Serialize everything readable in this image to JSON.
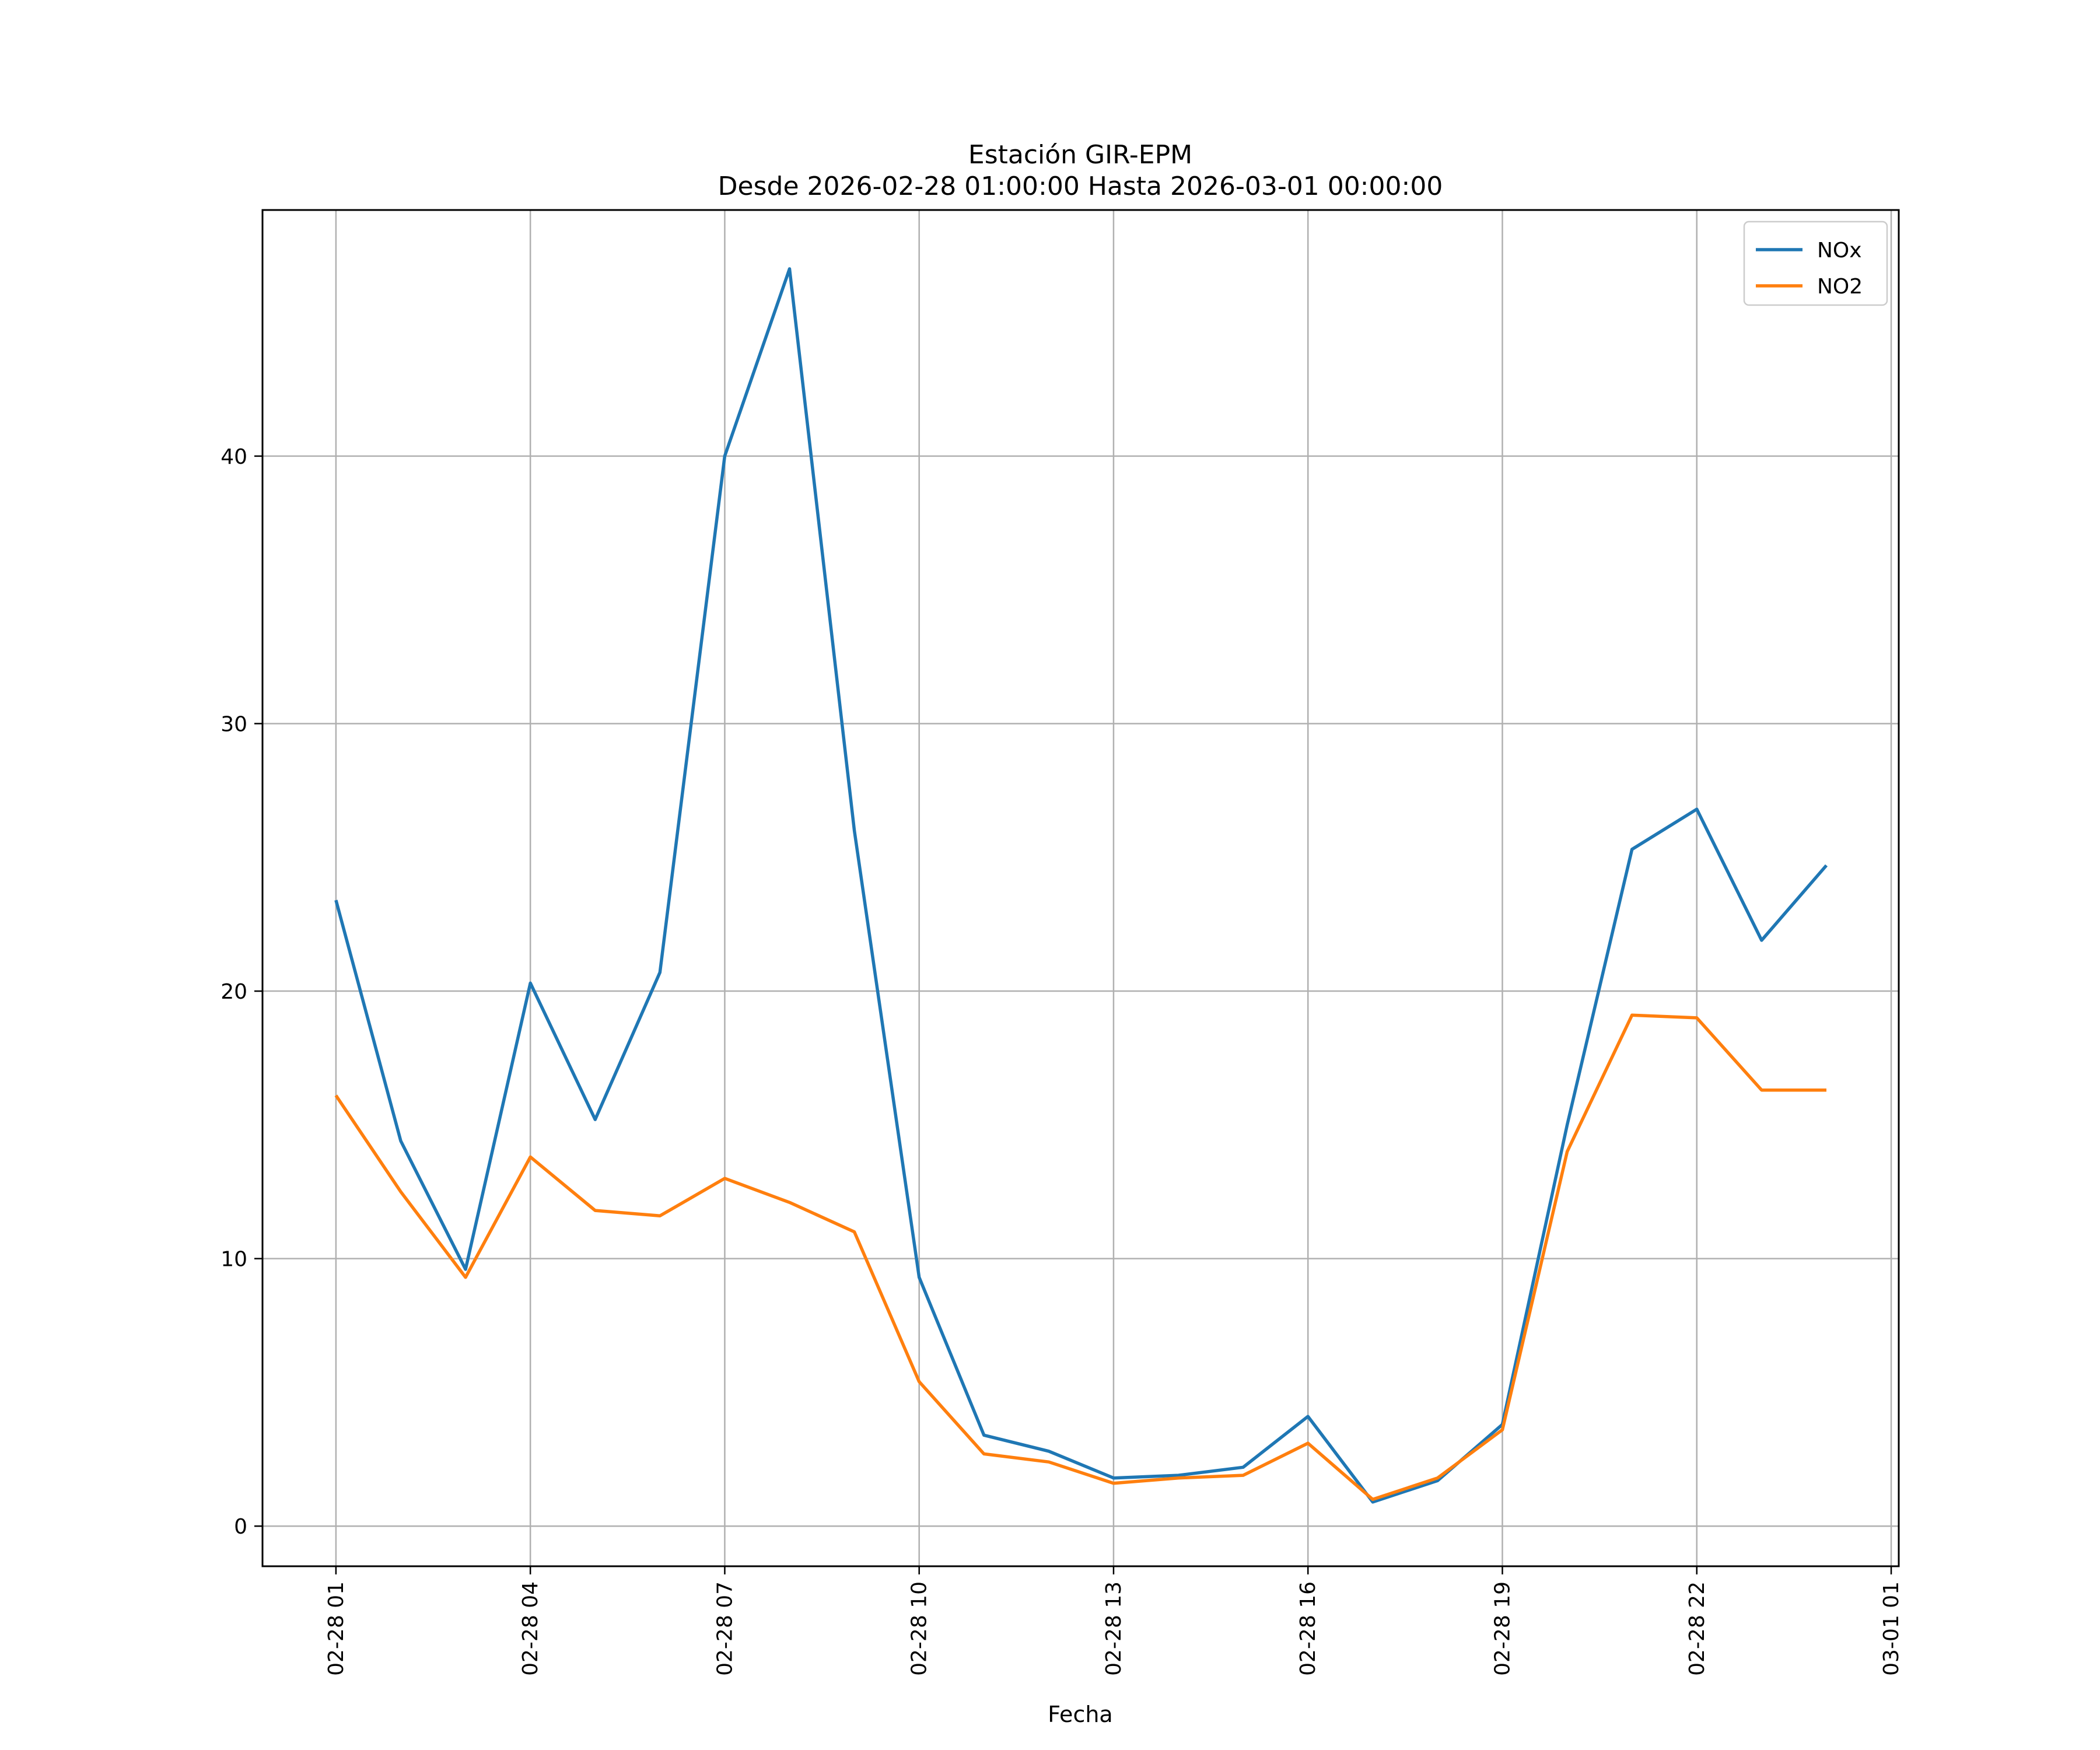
{
  "chart_data": {
    "type": "line",
    "title": "Estación GIR-EPM",
    "subtitle": "Desde 2026-02-28 01:00:00 Hasta 2026-03-01 00:00:00",
    "xlabel": "Fecha",
    "ylabel": "",
    "x": [
      "2026-02-28 01:00",
      "2026-02-28 02:00",
      "2026-02-28 03:00",
      "2026-02-28 04:00",
      "2026-02-28 05:00",
      "2026-02-28 06:00",
      "2026-02-28 07:00",
      "2026-02-28 08:00",
      "2026-02-28 09:00",
      "2026-02-28 10:00",
      "2026-02-28 11:00",
      "2026-02-28 12:00",
      "2026-02-28 13:00",
      "2026-02-28 14:00",
      "2026-02-28 15:00",
      "2026-02-28 16:00",
      "2026-02-28 17:00",
      "2026-02-28 18:00",
      "2026-02-28 19:00",
      "2026-02-28 20:00",
      "2026-02-28 21:00",
      "2026-02-28 22:00",
      "2026-02-28 23:00",
      "2026-03-01 00:00"
    ],
    "xticks": [
      "02-28 01",
      "02-28 04",
      "02-28 07",
      "02-28 10",
      "02-28 13",
      "02-28 16",
      "02-28 19",
      "02-28 22",
      "03-01 01"
    ],
    "yticks": [
      0,
      10,
      20,
      30,
      40
    ],
    "xlim": [
      "2026-02-27 23:52",
      "2026-03-01 01:07"
    ],
    "ylim": [
      -1.5,
      49.2
    ],
    "grid": true,
    "legend_position": "top-right",
    "series": [
      {
        "name": "NOx",
        "color": "#1f77b4",
        "values": [
          23.4,
          14.4,
          9.6,
          20.3,
          15.2,
          20.7,
          40.0,
          47.0,
          26.0,
          9.3,
          3.4,
          2.8,
          1.8,
          1.9,
          2.2,
          4.1,
          0.9,
          1.7,
          3.8,
          15.0,
          25.3,
          26.8,
          21.9,
          24.7
        ]
      },
      {
        "name": "NO2",
        "color": "#ff7f0e",
        "values": [
          16.1,
          12.5,
          9.3,
          13.8,
          11.8,
          11.6,
          13.0,
          12.1,
          11.0,
          5.4,
          2.7,
          2.4,
          1.6,
          1.8,
          1.9,
          3.1,
          1.0,
          1.8,
          3.6,
          14.0,
          19.1,
          19.0,
          16.3,
          16.3
        ]
      }
    ]
  }
}
